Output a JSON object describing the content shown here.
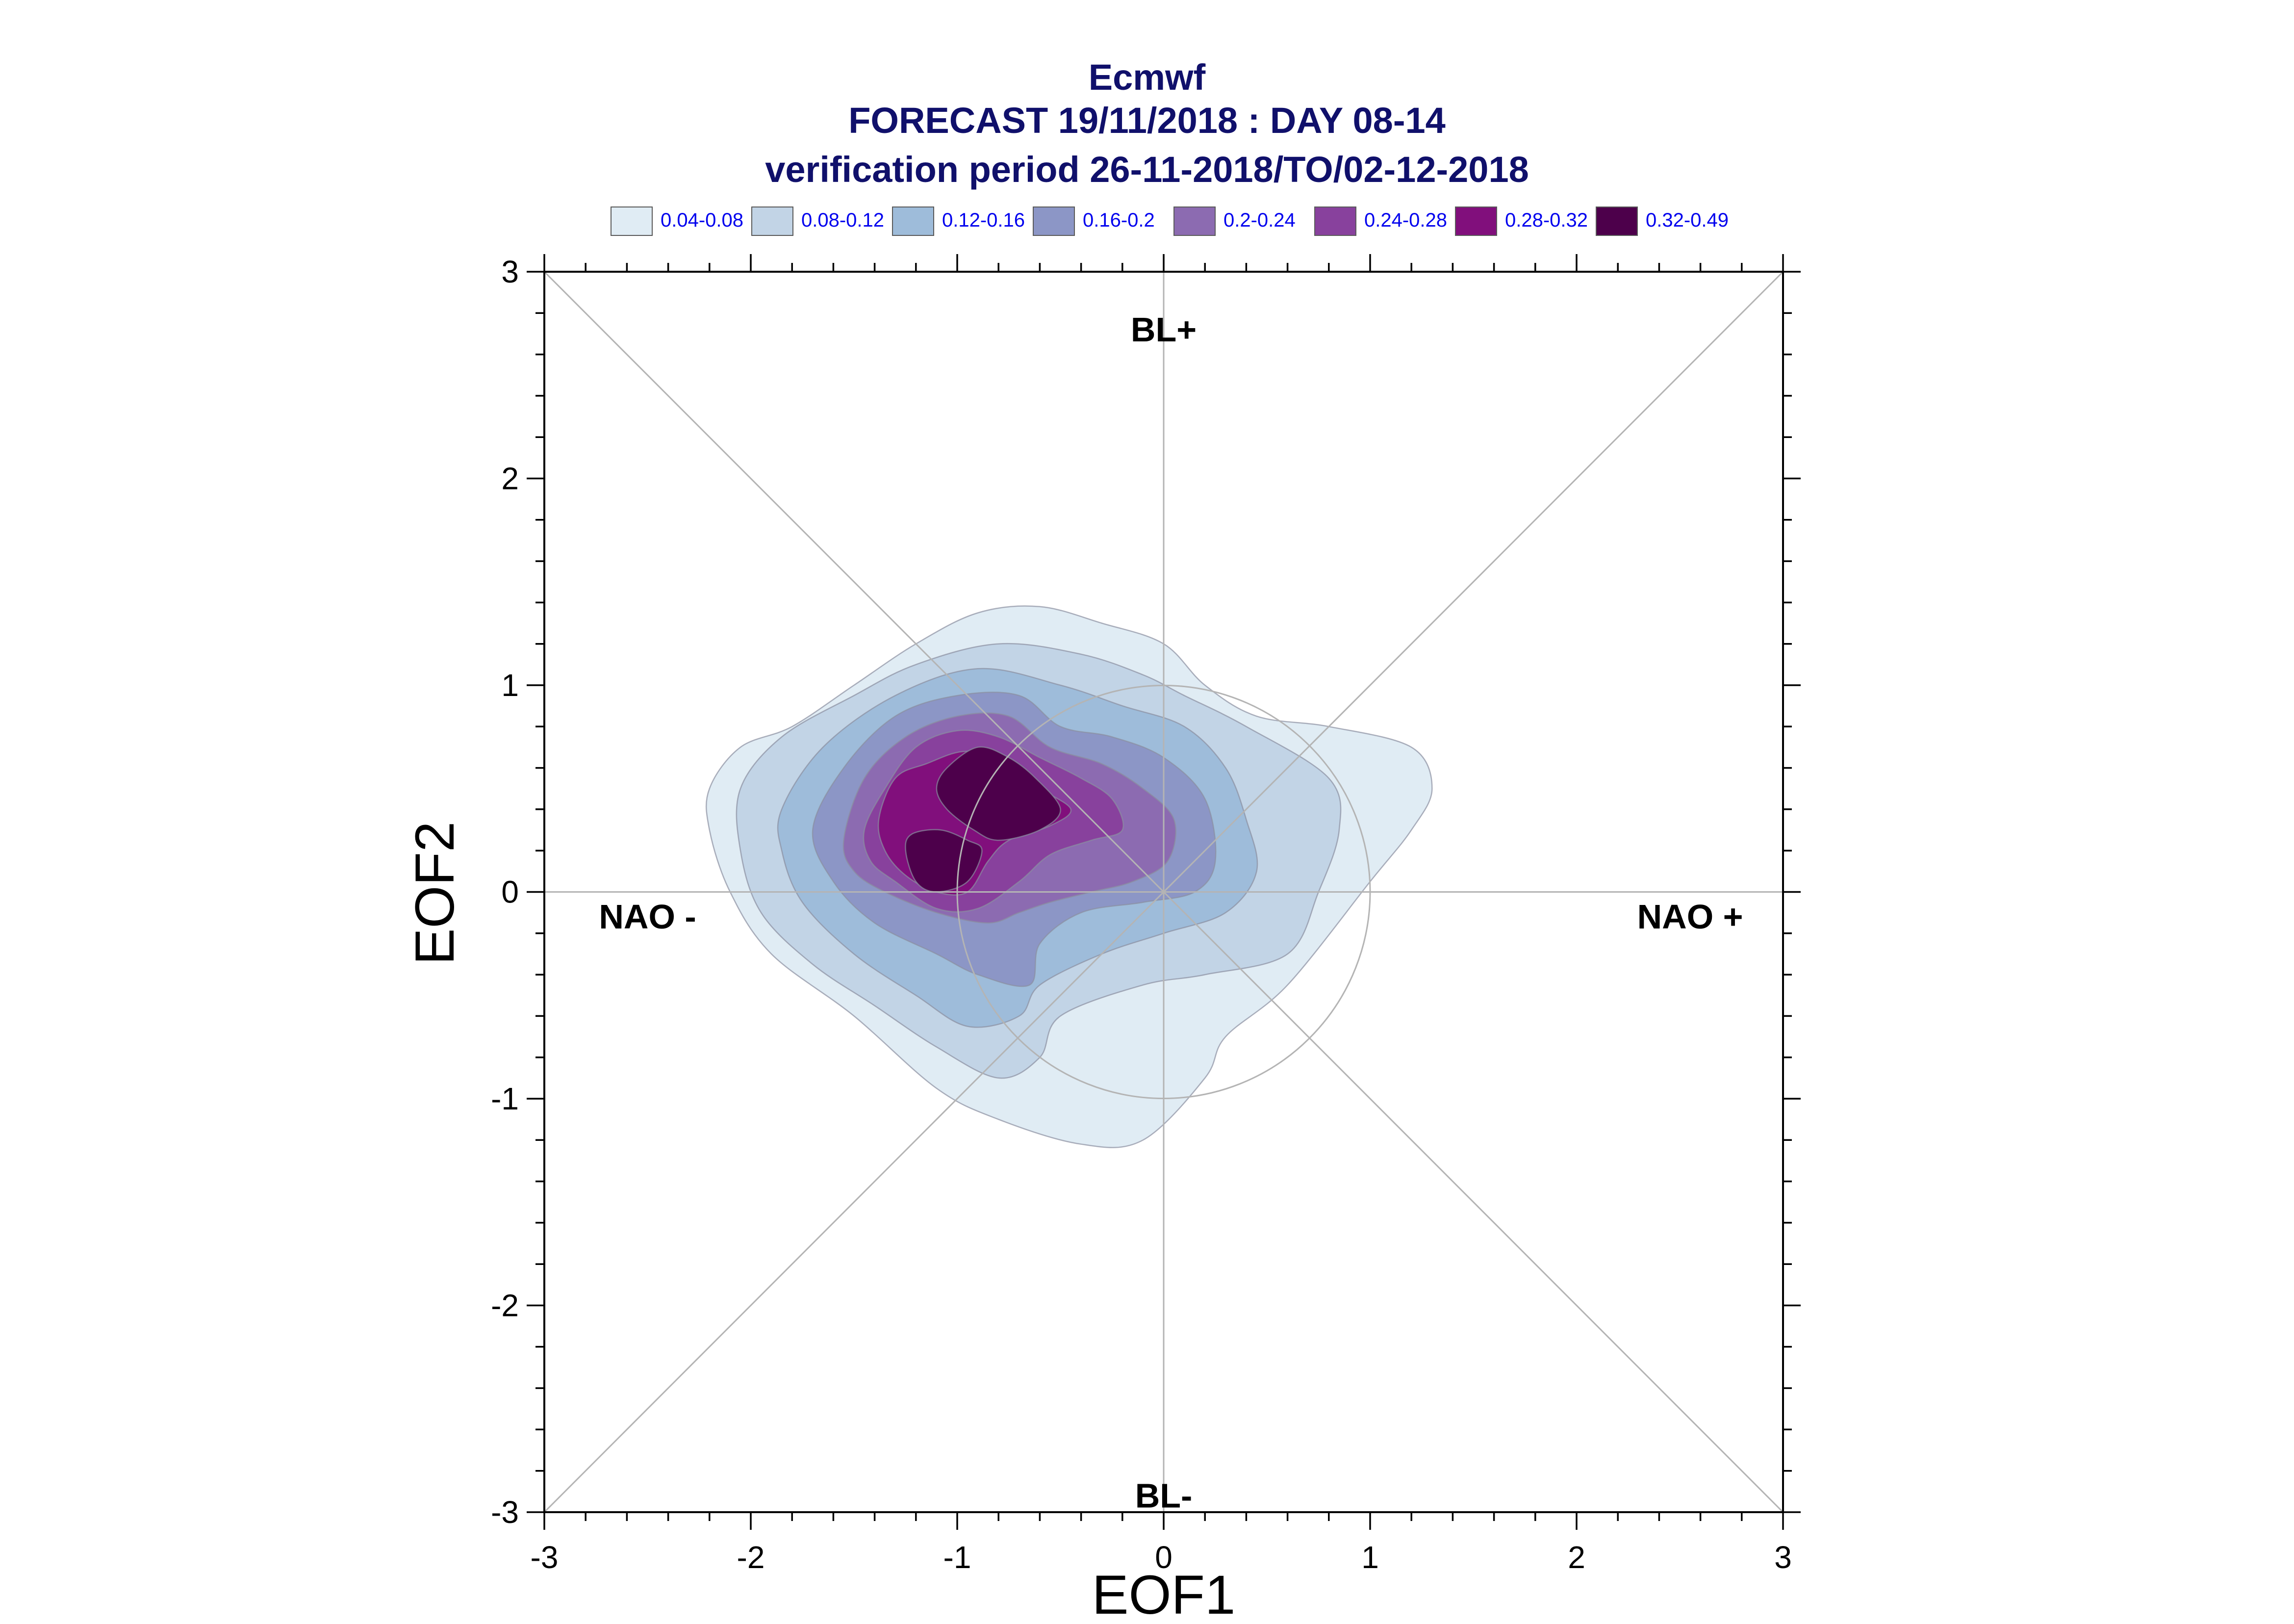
{
  "chart_data": {
    "type": "contour",
    "title": "Ecmwf",
    "subtitle": "FORECAST 19/11/2018 : DAY 08-14",
    "subtitle2": "verification period 26-11-2018/TO/02-12-2018",
    "xlabel": "EOF1",
    "ylabel": "EOF2",
    "xlim": [
      -3,
      3
    ],
    "ylim": [
      -3,
      3
    ],
    "x_ticks": [
      "-3",
      "-2",
      "-1",
      "0",
      "1",
      "2",
      "3"
    ],
    "y_ticks": [
      "-3",
      "-2",
      "-1",
      "0",
      "1",
      "2",
      "3"
    ],
    "x_tick_values": [
      -3,
      -2,
      -1,
      0,
      1,
      2,
      3
    ],
    "y_tick_values": [
      -3,
      -2,
      -1,
      0,
      1,
      2,
      3
    ],
    "regime_labels": [
      {
        "text": "BL+",
        "x": 0,
        "y": 2.72
      },
      {
        "text": "BL-",
        "x": 0,
        "y": -2.92
      },
      {
        "text": "NAO -",
        "x": -2.5,
        "y": -0.12
      },
      {
        "text": "NAO +",
        "x": 2.55,
        "y": -0.12
      }
    ],
    "reference_circle": {
      "cx": 0,
      "cy": 0,
      "r": 1
    },
    "legend": {
      "labels": [
        "0.04-0.08",
        "0.08-0.12",
        "0.12-0.16",
        "0.16-0.2",
        "0.2-0.24",
        "0.24-0.28",
        "0.28-0.32",
        "0.32-0.49"
      ],
      "colors": [
        "#e0ecf4",
        "#c2d4e6",
        "#9ebcda",
        "#8c96c6",
        "#8c6bb1",
        "#88419d",
        "#810f7c",
        "#4d004b"
      ]
    },
    "contours": [
      {
        "level": "0.04-0.08",
        "color": "#e0ecf4",
        "points": [
          [
            -2.2,
            0.5
          ],
          [
            -2.05,
            0.7
          ],
          [
            -1.8,
            0.8
          ],
          [
            -1.5,
            1.0
          ],
          [
            -1.2,
            1.2
          ],
          [
            -0.9,
            1.35
          ],
          [
            -0.6,
            1.38
          ],
          [
            -0.3,
            1.3
          ],
          [
            0.0,
            1.2
          ],
          [
            0.2,
            1.0
          ],
          [
            0.45,
            0.85
          ],
          [
            0.8,
            0.8
          ],
          [
            1.2,
            0.7
          ],
          [
            1.3,
            0.5
          ],
          [
            1.2,
            0.3
          ],
          [
            1.0,
            0.05
          ],
          [
            0.6,
            -0.45
          ],
          [
            0.3,
            -0.7
          ],
          [
            0.2,
            -0.9
          ],
          [
            -0.1,
            -1.2
          ],
          [
            -0.4,
            -1.22
          ],
          [
            -0.8,
            -1.1
          ],
          [
            -1.1,
            -0.95
          ],
          [
            -1.5,
            -0.6
          ],
          [
            -1.9,
            -0.3
          ],
          [
            -2.1,
            0.0
          ],
          [
            -2.2,
            0.3
          ]
        ]
      },
      {
        "level": "0.08-0.12",
        "color": "#c2d4e6",
        "points": [
          [
            -2.05,
            0.5
          ],
          [
            -1.85,
            0.75
          ],
          [
            -1.5,
            0.95
          ],
          [
            -1.2,
            1.1
          ],
          [
            -0.8,
            1.2
          ],
          [
            -0.4,
            1.15
          ],
          [
            -0.1,
            1.05
          ],
          [
            0.1,
            0.95
          ],
          [
            0.4,
            0.8
          ],
          [
            0.8,
            0.55
          ],
          [
            0.85,
            0.3
          ],
          [
            0.75,
            0.0
          ],
          [
            0.6,
            -0.3
          ],
          [
            0.2,
            -0.4
          ],
          [
            -0.1,
            -0.45
          ],
          [
            -0.5,
            -0.6
          ],
          [
            -0.6,
            -0.8
          ],
          [
            -0.8,
            -0.9
          ],
          [
            -1.1,
            -0.75
          ],
          [
            -1.4,
            -0.55
          ],
          [
            -1.7,
            -0.35
          ],
          [
            -1.95,
            -0.1
          ],
          [
            -2.05,
            0.2
          ]
        ]
      },
      {
        "level": "0.12-0.16",
        "color": "#9ebcda",
        "points": [
          [
            -1.85,
            0.4
          ],
          [
            -1.65,
            0.7
          ],
          [
            -1.3,
            0.95
          ],
          [
            -0.9,
            1.08
          ],
          [
            -0.5,
            1.0
          ],
          [
            -0.2,
            0.9
          ],
          [
            0.1,
            0.8
          ],
          [
            0.3,
            0.6
          ],
          [
            0.4,
            0.35
          ],
          [
            0.45,
            0.1
          ],
          [
            0.3,
            -0.1
          ],
          [
            0.0,
            -0.2
          ],
          [
            -0.3,
            -0.3
          ],
          [
            -0.6,
            -0.45
          ],
          [
            -0.7,
            -0.6
          ],
          [
            -0.95,
            -0.65
          ],
          [
            -1.2,
            -0.5
          ],
          [
            -1.5,
            -0.3
          ],
          [
            -1.75,
            -0.05
          ],
          [
            -1.85,
            0.2
          ]
        ]
      },
      {
        "level": "0.16-0.2",
        "color": "#8c96c6",
        "points": [
          [
            -1.7,
            0.3
          ],
          [
            -1.55,
            0.6
          ],
          [
            -1.3,
            0.85
          ],
          [
            -1.0,
            0.95
          ],
          [
            -0.7,
            0.95
          ],
          [
            -0.5,
            0.8
          ],
          [
            -0.25,
            0.75
          ],
          [
            0.0,
            0.65
          ],
          [
            0.2,
            0.45
          ],
          [
            0.25,
            0.15
          ],
          [
            0.15,
            0.0
          ],
          [
            -0.1,
            -0.05
          ],
          [
            -0.4,
            -0.1
          ],
          [
            -0.6,
            -0.25
          ],
          [
            -0.65,
            -0.45
          ],
          [
            -0.9,
            -0.4
          ],
          [
            -1.1,
            -0.3
          ],
          [
            -1.4,
            -0.15
          ],
          [
            -1.6,
            0.05
          ]
        ]
      },
      {
        "level": "0.2-0.24",
        "color": "#8c6bb1",
        "points": [
          [
            -1.55,
            0.25
          ],
          [
            -1.45,
            0.55
          ],
          [
            -1.25,
            0.75
          ],
          [
            -1.0,
            0.85
          ],
          [
            -0.75,
            0.85
          ],
          [
            -0.55,
            0.7
          ],
          [
            -0.3,
            0.62
          ],
          [
            -0.1,
            0.5
          ],
          [
            0.05,
            0.35
          ],
          [
            0.02,
            0.15
          ],
          [
            -0.15,
            0.05
          ],
          [
            -0.35,
            0.0
          ],
          [
            -0.55,
            -0.05
          ],
          [
            -0.7,
            -0.1
          ],
          [
            -0.85,
            -0.15
          ],
          [
            -1.1,
            -0.1
          ],
          [
            -1.35,
            0.0
          ],
          [
            -1.5,
            0.1
          ]
        ]
      },
      {
        "level": "0.24-0.28",
        "color": "#88419d",
        "points": [
          [
            -1.45,
            0.3
          ],
          [
            -1.35,
            0.5
          ],
          [
            -1.2,
            0.7
          ],
          [
            -1.0,
            0.78
          ],
          [
            -0.8,
            0.75
          ],
          [
            -0.6,
            0.65
          ],
          [
            -0.4,
            0.55
          ],
          [
            -0.25,
            0.45
          ],
          [
            -0.2,
            0.3
          ],
          [
            -0.35,
            0.25
          ],
          [
            -0.55,
            0.18
          ],
          [
            -0.7,
            0.05
          ],
          [
            -0.9,
            -0.08
          ],
          [
            -1.1,
            -0.08
          ],
          [
            -1.3,
            0.05
          ],
          [
            -1.42,
            0.15
          ]
        ]
      },
      {
        "level": "0.28-0.32",
        "color": "#810f7c",
        "points": [
          [
            -1.38,
            0.35
          ],
          [
            -1.3,
            0.55
          ],
          [
            -1.15,
            0.62
          ],
          [
            -0.95,
            0.68
          ],
          [
            -0.75,
            0.6
          ],
          [
            -0.6,
            0.5
          ],
          [
            -0.45,
            0.4
          ],
          [
            -0.55,
            0.32
          ],
          [
            -0.75,
            0.25
          ],
          [
            -0.85,
            0.15
          ],
          [
            -0.95,
            0.0
          ],
          [
            -1.1,
            0.0
          ],
          [
            -1.25,
            0.08
          ],
          [
            -1.35,
            0.2
          ]
        ]
      },
      {
        "level": "0.32-0.49",
        "color": "#4d004b",
        "points": [
          [
            -1.1,
            0.5
          ],
          [
            -1.05,
            0.6
          ],
          [
            -0.9,
            0.7
          ],
          [
            -0.75,
            0.65
          ],
          [
            -0.62,
            0.55
          ],
          [
            -0.5,
            0.4
          ],
          [
            -0.6,
            0.3
          ],
          [
            -0.8,
            0.25
          ],
          [
            -0.92,
            0.3
          ],
          [
            -1.05,
            0.4
          ]
        ]
      },
      {
        "level": "0.32-0.49",
        "color": "#4d004b",
        "points": [
          [
            -1.25,
            0.2
          ],
          [
            -1.22,
            0.28
          ],
          [
            -1.08,
            0.3
          ],
          [
            -0.95,
            0.25
          ],
          [
            -0.88,
            0.2
          ],
          [
            -0.95,
            0.05
          ],
          [
            -1.1,
            0.0
          ],
          [
            -1.2,
            0.05
          ]
        ]
      }
    ]
  }
}
